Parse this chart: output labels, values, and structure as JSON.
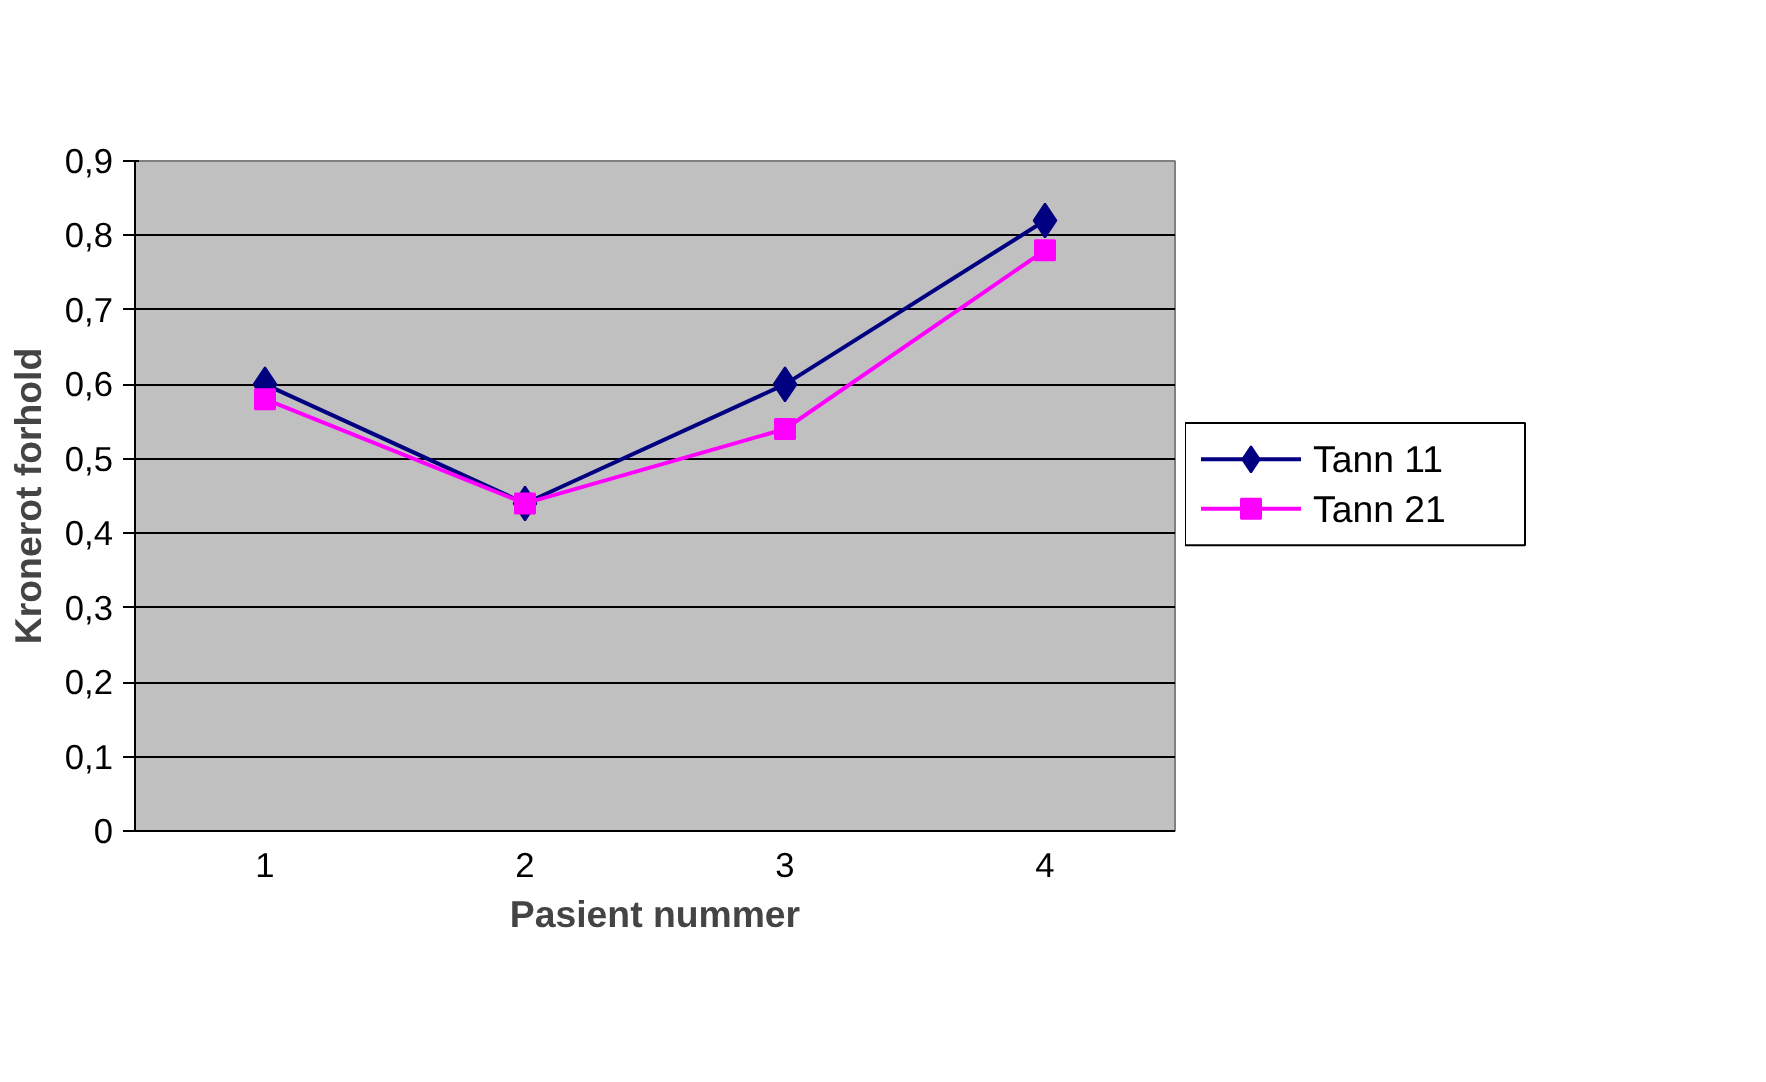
{
  "chart_data": {
    "type": "line",
    "xlabel": "Pasient nummer",
    "ylabel": "Kronerot forhold",
    "categories": [
      "1",
      "2",
      "3",
      "4"
    ],
    "series": [
      {
        "name": "Tann 11",
        "color": "#000080",
        "marker": "diamond",
        "values": [
          0.6,
          0.44,
          0.6,
          0.82
        ]
      },
      {
        "name": "Tann 21",
        "color": "#ff00ff",
        "marker": "square",
        "values": [
          0.58,
          0.44,
          0.54,
          0.78
        ]
      }
    ],
    "ylim": [
      0,
      0.9
    ],
    "yticks": [
      {
        "value": 0,
        "label": "0"
      },
      {
        "value": 0.1,
        "label": "0,1"
      },
      {
        "value": 0.2,
        "label": "0,2"
      },
      {
        "value": 0.3,
        "label": "0,3"
      },
      {
        "value": 0.4,
        "label": "0,4"
      },
      {
        "value": 0.5,
        "label": "0,5"
      },
      {
        "value": 0.6,
        "label": "0,6"
      },
      {
        "value": 0.7,
        "label": "0,7"
      },
      {
        "value": 0.8,
        "label": "0,8"
      },
      {
        "value": 0.9,
        "label": "0,9"
      }
    ],
    "grid": "y",
    "legend": "right",
    "line_style": "solid"
  }
}
